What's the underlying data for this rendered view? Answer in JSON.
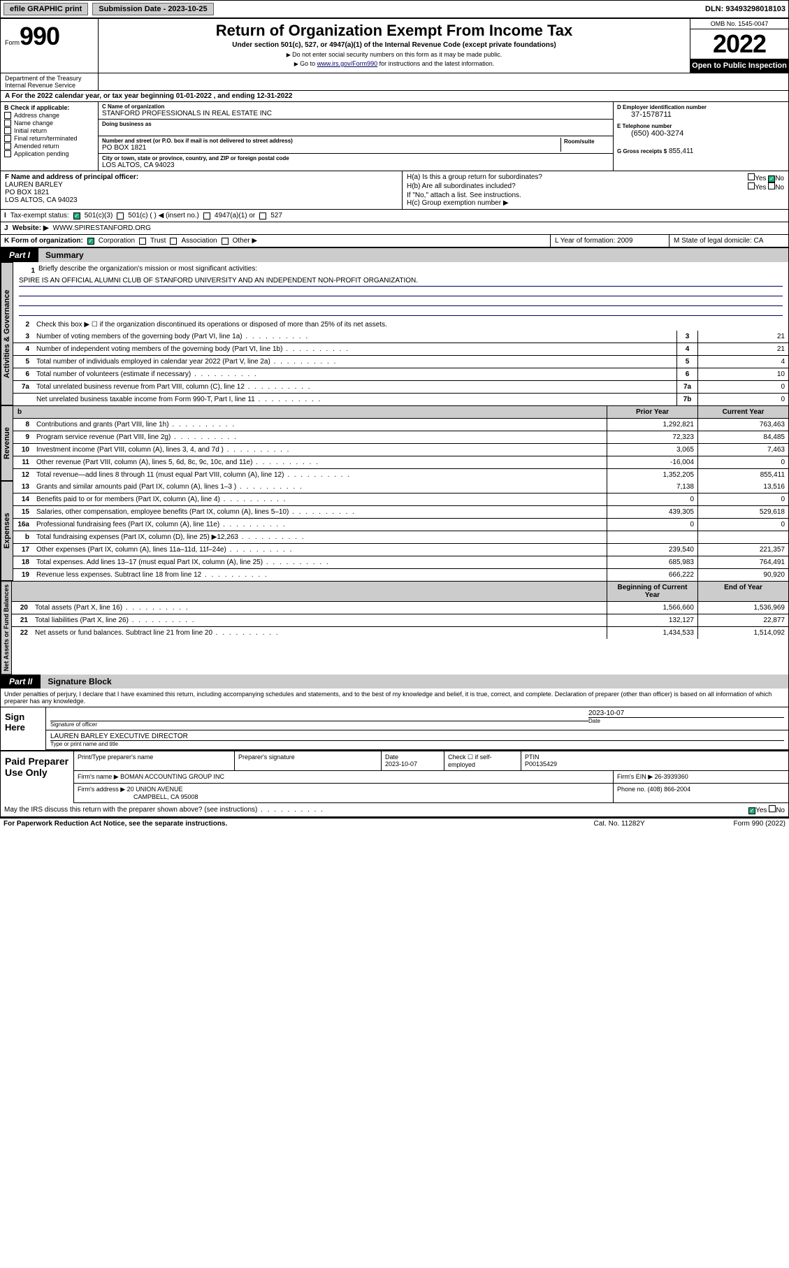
{
  "topbar": {
    "efile": "efile GRAPHIC print",
    "subdate_label": "Submission Date - 2023-10-25",
    "dln": "DLN: 93493298018103"
  },
  "header": {
    "form_prefix": "Form",
    "form_num": "990",
    "title": "Return of Organization Exempt From Income Tax",
    "subtitle": "Under section 501(c), 527, or 4947(a)(1) of the Internal Revenue Code (except private foundations)",
    "note1": "Do not enter social security numbers on this form as it may be made public.",
    "note2_pre": "Go to ",
    "note2_link": "www.irs.gov/Form990",
    "note2_post": " for instructions and the latest information.",
    "omb": "OMB No. 1545-0047",
    "year": "2022",
    "inspection": "Open to Public Inspection",
    "dept": "Department of the Treasury Internal Revenue Service"
  },
  "lineA": "For the 2022 calendar year, or tax year beginning 01-01-2022   , and ending 12-31-2022",
  "sectionB": {
    "label": "B Check if applicable:",
    "opts": [
      "Address change",
      "Name change",
      "Initial return",
      "Final return/terminated",
      "Amended return",
      "Application pending"
    ]
  },
  "sectionC": {
    "name_label": "C Name of organization",
    "name": "STANFORD PROFESSIONALS IN REAL ESTATE INC",
    "dba_label": "Doing business as",
    "street_label": "Number and street (or P.O. box if mail is not delivered to street address)",
    "room_label": "Room/suite",
    "street": "PO BOX 1821",
    "city_label": "City or town, state or province, country, and ZIP or foreign postal code",
    "city": "LOS ALTOS, CA  94023"
  },
  "sectionD": {
    "ein_label": "D Employer identification number",
    "ein": "37-1578711",
    "phone_label": "E Telephone number",
    "phone": "(650) 400-3274",
    "gross_label": "G Gross receipts $",
    "gross": "855,411"
  },
  "sectionF": {
    "label": "F Name and address of principal officer:",
    "name": "LAUREN BARLEY",
    "addr1": "PO BOX 1821",
    "addr2": "LOS ALTOS, CA  94023"
  },
  "sectionH": {
    "a": "H(a)  Is this a group return for subordinates?",
    "b": "H(b)  Are all subordinates included?",
    "bnote": "If \"No,\" attach a list. See instructions.",
    "c": "H(c)  Group exemption number ▶",
    "yes": "Yes",
    "no": "No"
  },
  "sectionI": {
    "label": "Tax-exempt status:",
    "opt1": "501(c)(3)",
    "opt2": "501(c) (  ) ◀ (insert no.)",
    "opt3": "4947(a)(1) or",
    "opt4": "527"
  },
  "sectionJ": {
    "label": "Website: ▶",
    "val": "WWW.SPIRESTANFORD.ORG"
  },
  "sectionK": {
    "label": "K Form of organization:",
    "opts": [
      "Corporation",
      "Trust",
      "Association",
      "Other ▶"
    ]
  },
  "sectionL": {
    "label": "L Year of formation: 2009"
  },
  "sectionM": {
    "label": "M State of legal domicile: CA"
  },
  "part1": {
    "tab": "Part I",
    "title": "Summary"
  },
  "q1": {
    "num": "1",
    "text": "Briefly describe the organization's mission or most significant activities:",
    "mission": "SPIRE IS AN OFFICIAL ALUMNI CLUB OF STANFORD UNIVERSITY AND AN INDEPENDENT NON-PROFIT ORGANIZATION."
  },
  "q2": {
    "num": "2",
    "text": "Check this box ▶ ☐  if the organization discontinued its operations or disposed of more than 25% of its net assets."
  },
  "rows_gov": [
    {
      "num": "3",
      "text": "Number of voting members of the governing body (Part VI, line 1a)",
      "box": "3",
      "cur": "21"
    },
    {
      "num": "4",
      "text": "Number of independent voting members of the governing body (Part VI, line 1b)",
      "box": "4",
      "cur": "21"
    },
    {
      "num": "5",
      "text": "Total number of individuals employed in calendar year 2022 (Part V, line 2a)",
      "box": "5",
      "cur": "4"
    },
    {
      "num": "6",
      "text": "Total number of volunteers (estimate if necessary)",
      "box": "6",
      "cur": "10"
    },
    {
      "num": "7a",
      "text": "Total unrelated business revenue from Part VIII, column (C), line 12",
      "box": "7a",
      "cur": "0"
    },
    {
      "num": "",
      "text": "Net unrelated business taxable income from Form 990-T, Part I, line 11",
      "box": "7b",
      "cur": "0"
    }
  ],
  "col_headers": {
    "b": "b",
    "prior": "Prior Year",
    "current": "Current Year"
  },
  "rows_rev": [
    {
      "num": "8",
      "text": "Contributions and grants (Part VIII, line 1h)",
      "prior": "1,292,821",
      "cur": "763,463"
    },
    {
      "num": "9",
      "text": "Program service revenue (Part VIII, line 2g)",
      "prior": "72,323",
      "cur": "84,485"
    },
    {
      "num": "10",
      "text": "Investment income (Part VIII, column (A), lines 3, 4, and 7d )",
      "prior": "3,065",
      "cur": "7,463"
    },
    {
      "num": "11",
      "text": "Other revenue (Part VIII, column (A), lines 5, 6d, 8c, 9c, 10c, and 11e)",
      "prior": "-16,004",
      "cur": "0"
    },
    {
      "num": "12",
      "text": "Total revenue—add lines 8 through 11 (must equal Part VIII, column (A), line 12)",
      "prior": "1,352,205",
      "cur": "855,411"
    }
  ],
  "rows_exp": [
    {
      "num": "13",
      "text": "Grants and similar amounts paid (Part IX, column (A), lines 1–3 )",
      "prior": "7,138",
      "cur": "13,516"
    },
    {
      "num": "14",
      "text": "Benefits paid to or for members (Part IX, column (A), line 4)",
      "prior": "0",
      "cur": "0"
    },
    {
      "num": "15",
      "text": "Salaries, other compensation, employee benefits (Part IX, column (A), lines 5–10)",
      "prior": "439,305",
      "cur": "529,618"
    },
    {
      "num": "16a",
      "text": "Professional fundraising fees (Part IX, column (A), line 11e)",
      "prior": "0",
      "cur": "0"
    },
    {
      "num": "b",
      "text": "Total fundraising expenses (Part IX, column (D), line 25) ▶12,263",
      "prior": "",
      "cur": ""
    },
    {
      "num": "17",
      "text": "Other expenses (Part IX, column (A), lines 11a–11d, 11f–24e)",
      "prior": "239,540",
      "cur": "221,357"
    },
    {
      "num": "18",
      "text": "Total expenses. Add lines 13–17 (must equal Part IX, column (A), line 25)",
      "prior": "685,983",
      "cur": "764,491"
    },
    {
      "num": "19",
      "text": "Revenue less expenses. Subtract line 18 from line 12",
      "prior": "666,222",
      "cur": "90,920"
    }
  ],
  "col_headers2": {
    "prior": "Beginning of Current Year",
    "current": "End of Year"
  },
  "rows_net": [
    {
      "num": "20",
      "text": "Total assets (Part X, line 16)",
      "prior": "1,566,660",
      "cur": "1,536,969"
    },
    {
      "num": "21",
      "text": "Total liabilities (Part X, line 26)",
      "prior": "132,127",
      "cur": "22,877"
    },
    {
      "num": "22",
      "text": "Net assets or fund balances. Subtract line 21 from line 20",
      "prior": "1,434,533",
      "cur": "1,514,092"
    }
  ],
  "vert": {
    "gov": "Activities & Governance",
    "rev": "Revenue",
    "exp": "Expenses",
    "net": "Net Assets or Fund Balances"
  },
  "part2": {
    "tab": "Part II",
    "title": "Signature Block"
  },
  "sig": {
    "declaration": "Under penalties of perjury, I declare that I have examined this return, including accompanying schedules and statements, and to the best of my knowledge and belief, it is true, correct, and complete. Declaration of preparer (other than officer) is based on all information of which preparer has any knowledge.",
    "sign_here": "Sign Here",
    "sig_officer": "Signature of officer",
    "date_label": "Date",
    "date": "2023-10-07",
    "name": "LAUREN BARLEY EXECUTIVE DIRECTOR",
    "name_label": "Type or print name and title"
  },
  "prep": {
    "label": "Paid Preparer Use Only",
    "h1": "Print/Type preparer's name",
    "h2": "Preparer's signature",
    "h3": "Date",
    "h3v": "2023-10-07",
    "h4": "Check ☐ if self-employed",
    "h5": "PTIN",
    "h5v": "P00135429",
    "firm_label": "Firm's name    ▶",
    "firm": "BOMAN ACCOUNTING GROUP INC",
    "ein_label": "Firm's EIN ▶",
    "ein": "26-3939360",
    "addr_label": "Firm's address ▶",
    "addr1": "20 UNION AVENUE",
    "addr2": "CAMPBELL, CA  95008",
    "phone_label": "Phone no.",
    "phone": "(408) 866-2004"
  },
  "discuss": {
    "text": "May the IRS discuss this return with the preparer shown above? (see instructions)",
    "yes": "Yes",
    "no": "No"
  },
  "footer": {
    "left": "For Paperwork Reduction Act Notice, see the separate instructions.",
    "mid": "Cat. No. 11282Y",
    "right": "Form 990 (2022)"
  }
}
